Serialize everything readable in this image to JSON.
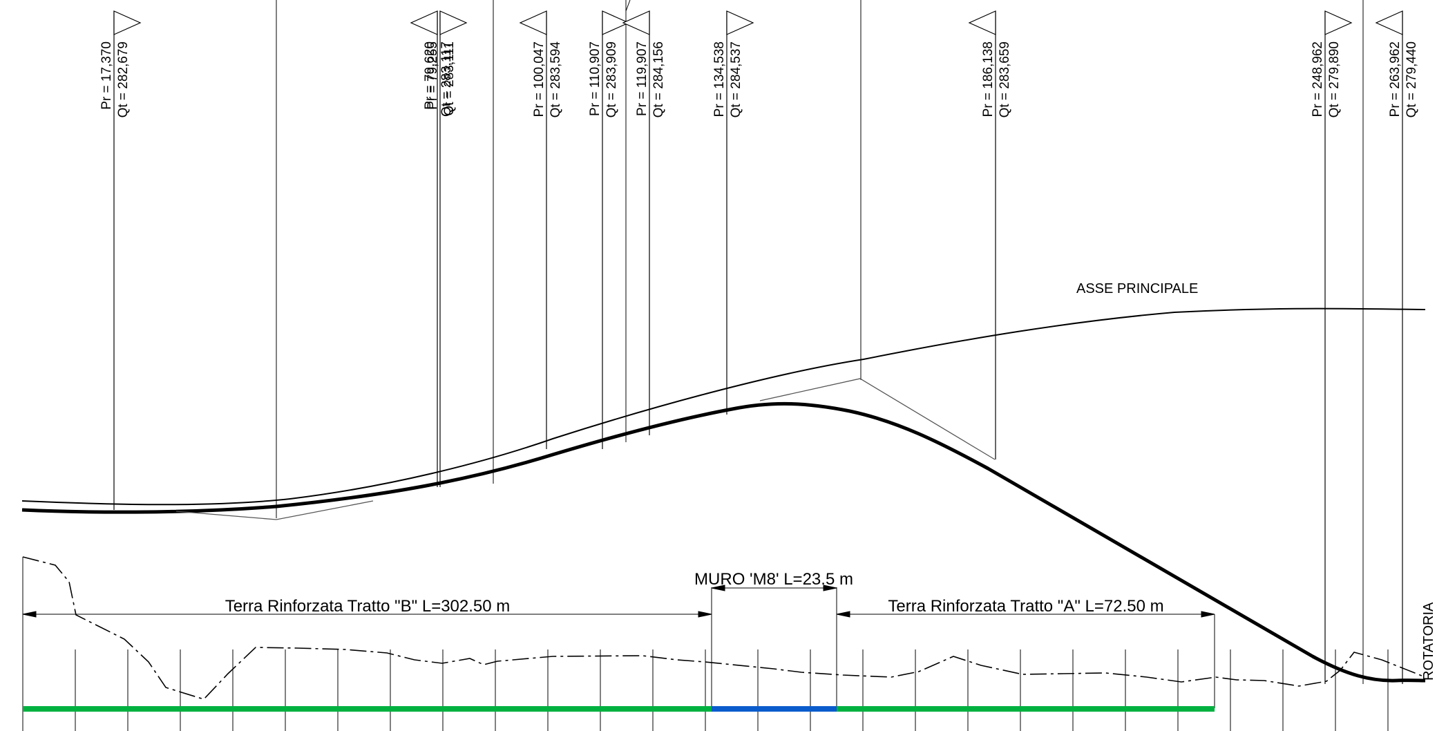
{
  "vertical_markers": [
    {
      "pr": "Pr = 17,370",
      "qt": "Qt = 282,679"
    },
    {
      "pr": "Pr = 79,620",
      "qt": "Qt = 283,117"
    },
    {
      "pr": "Pr = 79,255",
      "qt": "Qt = 283,111"
    },
    {
      "pr": "Pr = 100,047",
      "qt": "Qt = 283,594"
    },
    {
      "pr": "Pr = 110,907",
      "qt": "Qt = 283,909"
    },
    {
      "pr": "Pr = 119,907",
      "qt": "Qt = 284,156"
    },
    {
      "pr": "Pr = 134,538",
      "qt": "Qt = 284,537"
    },
    {
      "pr": "Pr = 186,138",
      "qt": "Qt = 283,659"
    },
    {
      "pr": "Pr = 248,962",
      "qt": "Qt = 279,890"
    },
    {
      "pr": "Pr = 263,962",
      "qt": "Qt = 279,440"
    }
  ],
  "labels": {
    "main_axis": "ASSE PRINCIPALE",
    "rotatoria": "ROTATORIA"
  },
  "segments": {
    "tratto_b": "Terra Rinforzata Tratto \"B\" L=302.50 m",
    "muro": "MURO 'M8' L=23.5 m",
    "tratto_a": "Terra Rinforzata Tratto \"A\" L=72.50 m"
  },
  "colors": {
    "line": "#000000",
    "terra_rinforzata": "#00b140",
    "muro": "#0a5ccc"
  }
}
